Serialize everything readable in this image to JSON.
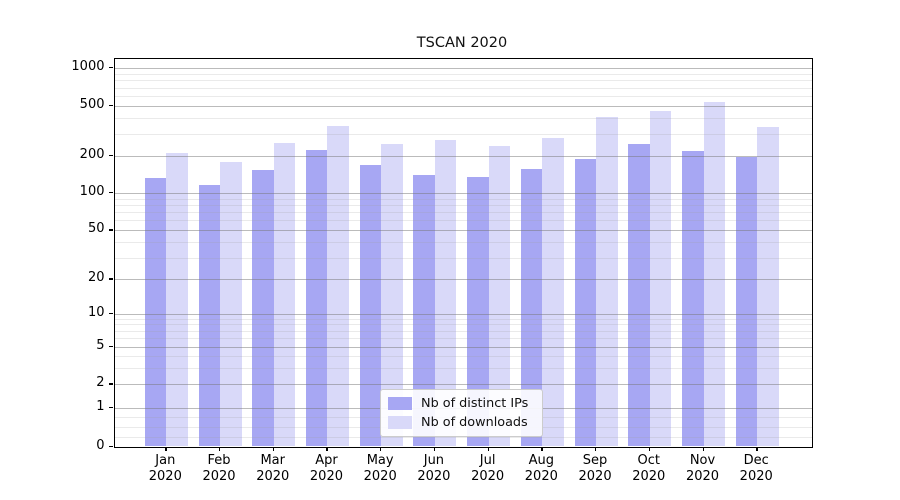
{
  "chart_data": {
    "type": "bar",
    "title": "TSCAN 2020",
    "categories": [
      "Jan 2020",
      "Feb 2020",
      "Mar 2020",
      "Apr 2020",
      "May 2020",
      "Jun 2020",
      "Jul 2020",
      "Aug 2020",
      "Sep 2020",
      "Oct 2020",
      "Nov 2020",
      "Dec 2020"
    ],
    "series": [
      {
        "name": "Nb of distinct IPs",
        "color": "#a7a7f3",
        "values": [
          133,
          116,
          152,
          220,
          167,
          140,
          135,
          157,
          186,
          249,
          217,
          195
        ]
      },
      {
        "name": "Nb of downloads",
        "color": "#d9d9f9",
        "values": [
          210,
          178,
          253,
          345,
          249,
          265,
          238,
          277,
          408,
          456,
          539,
          339
        ]
      }
    ],
    "xlabel": "",
    "ylabel": "",
    "yscale": "symlog",
    "ylim": [
      0,
      1200
    ],
    "y_major_ticks": [
      0,
      1,
      2,
      5,
      10,
      20,
      50,
      100,
      200,
      500,
      1000
    ],
    "y_minor_ticks": [
      0.25,
      0.5,
      0.75,
      3,
      4,
      6,
      7,
      8,
      9,
      30,
      40,
      60,
      70,
      80,
      90,
      300,
      400,
      600,
      700,
      800,
      900
    ],
    "grid": true,
    "legend_position": "lower center"
  },
  "colors": {
    "bar_dark": "#a7a7f3",
    "bar_light": "#d9d9f9",
    "grid_major": "#b0b0b0",
    "grid_minor": "#dddddd",
    "spine": "#000000",
    "background": "#ffffff"
  }
}
